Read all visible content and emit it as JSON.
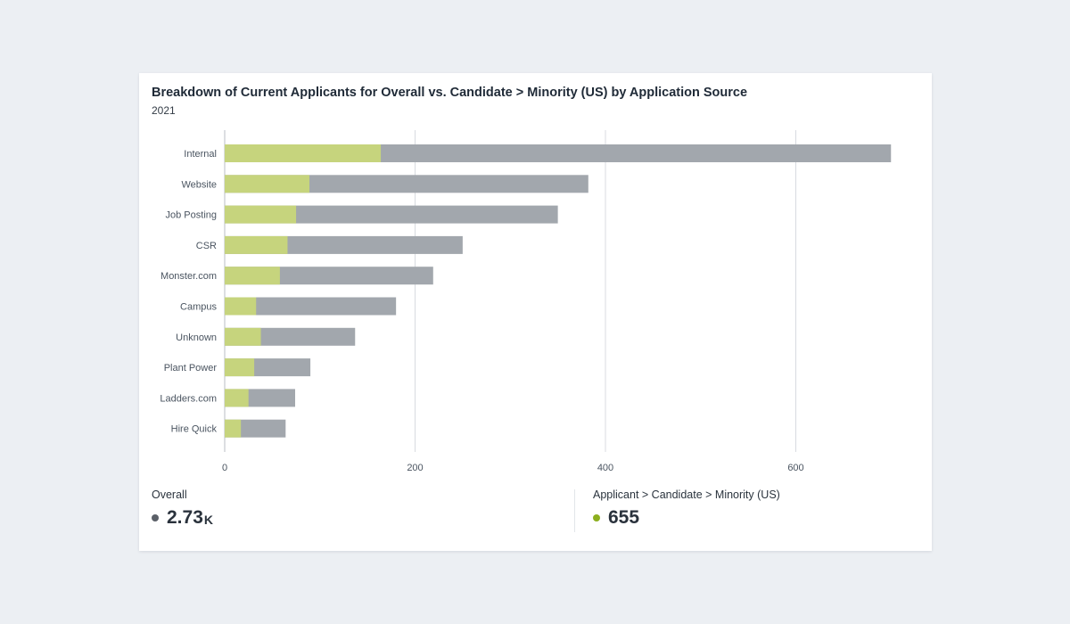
{
  "colors": {
    "overall": "#a2a7ad",
    "minority": "#c6d47d",
    "overall_dot": "#5b6068",
    "minority_dot": "#8caf1e",
    "gridline": "#d8dbe0",
    "axis": "#b9bec5"
  },
  "chart_data": {
    "type": "bar",
    "orientation": "horizontal",
    "stacked": false,
    "title": "Breakdown of Current Applicants for Overall vs. Candidate > Minority (US) by Application Source",
    "subtitle": "2021",
    "categories": [
      "Internal",
      "Website",
      "Job Posting",
      "CSR",
      "Monster.com",
      "Campus",
      "Unknown",
      "Plant Power",
      "Ladders.com",
      "Hire Quick"
    ],
    "series": [
      {
        "name": "Overall",
        "values": [
          700,
          382,
          350,
          250,
          219,
          180,
          137,
          90,
          74,
          64
        ]
      },
      {
        "name": "Applicant > Candidate > Minority (US)",
        "values": [
          164,
          89,
          75,
          66,
          58,
          33,
          38,
          31,
          25,
          17
        ]
      }
    ],
    "xlim": [
      0,
      720
    ],
    "xticks": [
      0,
      200,
      400,
      600
    ],
    "xlabel": "",
    "ylabel": "",
    "grid": true
  },
  "summary": {
    "overall": {
      "label": "Overall",
      "value": "2.73",
      "unit": "K"
    },
    "minority": {
      "label": "Applicant > Candidate > Minority (US)",
      "value": "655"
    }
  }
}
